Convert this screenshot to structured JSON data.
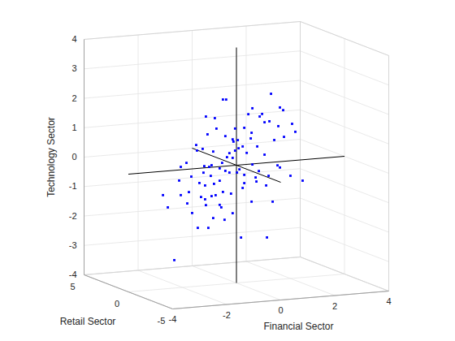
{
  "chart_data": {
    "type": "scatter3",
    "xlabel": "Financial Sector",
    "ylabel": "Retail Sector",
    "zlabel": "Technology Sector",
    "xlim": [
      -4,
      4
    ],
    "xticks": [
      -4,
      -2,
      0,
      2,
      4
    ],
    "ylim": [
      -5,
      5
    ],
    "yticks": [
      -5,
      0,
      5
    ],
    "zlim": [
      -4,
      4
    ],
    "zticks": [
      -4,
      -3,
      -2,
      -1,
      0,
      1,
      2,
      3,
      4
    ],
    "grid": true,
    "color": "#0000ff",
    "marker": "square",
    "origin": [
      0,
      0,
      0
    ],
    "x": [
      1.28,
      -0.5,
      -0.38,
      1.61,
      1.73,
      -1.13,
      -0.8,
      0.59,
      0.44,
      0.95,
      0.86,
      -0.74,
      0.29,
      -0.05,
      1.04,
      1.22,
      2.06,
      1.55,
      2.18,
      -0.14,
      0.05,
      -0.41,
      0.56,
      -1.07,
      -1.49,
      0.77,
      0.23,
      0.08,
      -0.11,
      1.76,
      1.4,
      0.53,
      -0.05,
      -0.26,
      1.04,
      0.38,
      -0.86,
      -1.46,
      -1.25,
      -1.85,
      -2.06,
      -0.92,
      -0.35,
      -0.14,
      0.59,
      0.11,
      -0.53,
      -1.01,
      -1.22,
      -1.67,
      -0.41,
      0.29,
      0.83,
      0.02,
      1.61,
      2.0,
      2.45,
      1.19,
      1.52,
      -0.95,
      -0.62,
      -0.26,
      -1.37,
      -0.83,
      -1.16,
      0.71,
      0.29,
      -0.5,
      -0.2,
      -0.92,
      -1.16,
      -0.77,
      -1.31,
      -2.06,
      -1.76,
      0.23,
      0.74,
      1.1,
      1.34,
      -2.72,
      -2.54,
      -1.82,
      -1.64,
      -0.86,
      -1.13,
      -0.62,
      -1.43,
      -0.56,
      -1.04,
      -0.14,
      0.56,
      -0.44,
      -2.3,
      0.17,
      1.13,
      -2.12,
      -1.19,
      -0.62
    ],
    "y": [
      0,
      0,
      0,
      0,
      0,
      0,
      0,
      0,
      0,
      0,
      0,
      0,
      0,
      0,
      0,
      0,
      0,
      0,
      0,
      0,
      0,
      0,
      0,
      0,
      0,
      0,
      0,
      0,
      0,
      0,
      0,
      0,
      0,
      0,
      0,
      0,
      0,
      0,
      0,
      0,
      0,
      0,
      0,
      0,
      0,
      0,
      0,
      0,
      0,
      0,
      0,
      0,
      0,
      0,
      0,
      0,
      0,
      0,
      0,
      0,
      0,
      0,
      0,
      0,
      0,
      0,
      0,
      0,
      0,
      0,
      0,
      0,
      0,
      0,
      0,
      0,
      0,
      0,
      0,
      0,
      0,
      0,
      0,
      0,
      0,
      0,
      0,
      0,
      0,
      0,
      0,
      0,
      0,
      0,
      0,
      0,
      0,
      0
    ],
    "z": [
      2.33,
      2.27,
      2.26,
      1.84,
      1.74,
      1.74,
      1.66,
      1.89,
      1.7,
      1.67,
      1.59,
      1.3,
      1.25,
      1.25,
      1.38,
      1.4,
      1.25,
      1.21,
      0.97,
      0.89,
      0.85,
      1.02,
      1.06,
      1.13,
      0.8,
      0.58,
      0.62,
      0.57,
      0.81,
      0.83,
      0.75,
      0.87,
      0.5,
      0.43,
      0.28,
      0.39,
      0.53,
      0.61,
      0.65,
      0.22,
      0.1,
      0.07,
      0.3,
      0.26,
      -0.02,
      -0.15,
      0.12,
      0.02,
      -0.16,
      -0.26,
      -0.16,
      -0.35,
      -0.26,
      -0.25,
      -0.2,
      -0.51,
      -0.71,
      -0.45,
      -0.12,
      -0.29,
      -0.48,
      -0.23,
      -0.5,
      -0.57,
      -0.6,
      -0.47,
      -0.63,
      -0.87,
      -0.95,
      -0.98,
      -1.07,
      -0.96,
      -0.98,
      -0.86,
      -0.78,
      -0.79,
      -0.61,
      -0.77,
      -1.34,
      -0.81,
      -1.24,
      -1.16,
      -1.5,
      -1.73,
      -1.27,
      -1.3,
      -2.02,
      -1.39,
      -2.05,
      -1.62,
      -1.28,
      -1.82,
      -3.05,
      -2.47,
      -2.54,
      -0.36,
      0.06,
      -0.06
    ]
  }
}
